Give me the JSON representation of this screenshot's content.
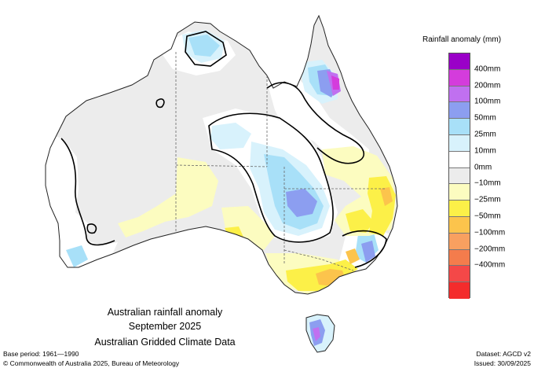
{
  "titles": {
    "line1": "Australian rainfall anomaly",
    "line2": "September 2025",
    "line3": "Australian Gridded Climate Data"
  },
  "legend": {
    "title": "Rainfall anomaly (mm)",
    "colors": [
      "#9a00c8",
      "#d43cdc",
      "#c070f0",
      "#8c9ef0",
      "#a8e0f8",
      "#d8f2fc",
      "#ffffff",
      "#ececec",
      "#fcfcc0",
      "#fcf048",
      "#fcc44c",
      "#f8a060",
      "#f47c4c",
      "#f44848",
      "#f42c2c"
    ],
    "labels": [
      "400mm",
      "200mm",
      "100mm",
      "50mm",
      "25mm",
      "10mm",
      "0mm",
      "−10mm",
      "−25mm",
      "−50mm",
      "−100mm",
      "−200mm",
      "−400mm"
    ]
  },
  "footer": {
    "base_period": "Base period: 1961—1990",
    "dataset": "Dataset: AGCD v2",
    "copyright": "© Commonwealth of Australia 2025, Bureau of Meteorology",
    "issued": "Issued: 30/09/2025"
  }
}
